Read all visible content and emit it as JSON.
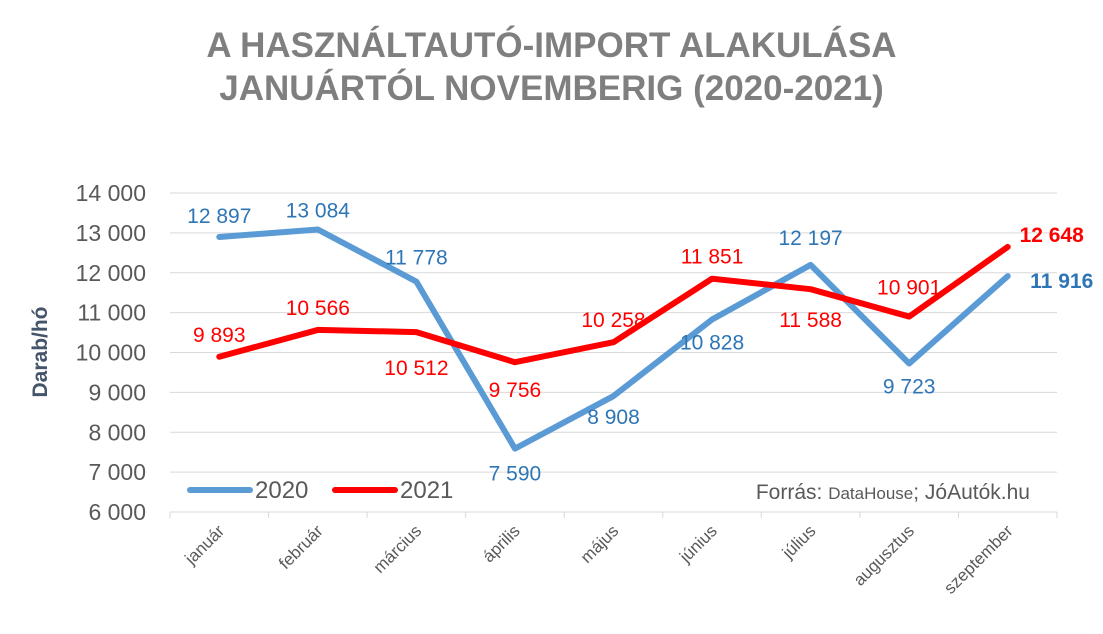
{
  "chart_data": {
    "type": "line",
    "title_line1": "A HASZNÁLTAUTÓ-IMPORT ALAKULÁSA",
    "title_line2": "JANUÁRTÓL NOVEMBERIG (2020-2021)",
    "ylabel": "Darab/hó",
    "xlabel": "",
    "ylim": [
      6000,
      14000
    ],
    "y_ticks": [
      {
        "value": 6000,
        "label": "6 000"
      },
      {
        "value": 7000,
        "label": "7 000"
      },
      {
        "value": 8000,
        "label": "8 000"
      },
      {
        "value": 9000,
        "label": "9 000"
      },
      {
        "value": 10000,
        "label": "10 000"
      },
      {
        "value": 11000,
        "label": "11 000"
      },
      {
        "value": 12000,
        "label": "12 000"
      },
      {
        "value": 13000,
        "label": "13 000"
      },
      {
        "value": 14000,
        "label": "14 000"
      }
    ],
    "categories": [
      "január",
      "február",
      "március",
      "április",
      "május",
      "június",
      "július",
      "augusztus",
      "szeptember"
    ],
    "grid": true,
    "legend_position": "bottom-left",
    "series": [
      {
        "name": "2020",
        "color": "#5b9bd5",
        "label_color": "#2e75b6",
        "values": [
          12897,
          13084,
          11778,
          7590,
          8908,
          10828,
          12197,
          9723,
          11916
        ],
        "labels": [
          "12 897",
          "13 084",
          "11 778",
          "7 590",
          "8 908",
          "10 828",
          "12 197",
          "9 723",
          "11 916"
        ]
      },
      {
        "name": "2021",
        "color": "#ff0000",
        "label_color": "#ff0000",
        "values": [
          9893,
          10566,
          10512,
          9756,
          10258,
          11851,
          11588,
          10901,
          12648
        ],
        "labels": [
          "9 893",
          "10 566",
          "10 512",
          "9 756",
          "10 258",
          "11 851",
          "11 588",
          "10 901",
          "12 648"
        ]
      }
    ],
    "source_prefix": "Forrás: ",
    "source_name": "DataHouse",
    "source_suffix": "; JóAutók.hu"
  }
}
